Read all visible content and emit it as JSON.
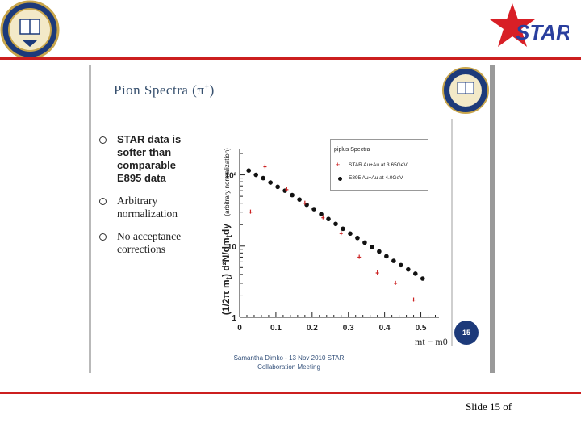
{
  "header": {
    "logo_text": "STAR",
    "colors": {
      "red": "#cc1f1f",
      "blue": "#2a3f9e",
      "gold": "#c8a54b"
    }
  },
  "slide": {
    "title_main": "Pion Spectra (",
    "title_symbol": "π",
    "title_sup": "+",
    "title_end": ")",
    "bullets": [
      "STAR data is softer than comparable E895 data",
      "Arbitrary normalization",
      "No acceptance corrections"
    ],
    "page_badge": "15",
    "caption_line1": "Samantha Dimko - 13 Nov 2010 STAR",
    "caption_line2": "Collaboration Meeting"
  },
  "chart_data": {
    "type": "scatter",
    "legend_title": "piplus Spectra",
    "ylabel": "(1/2π m",
    "ylabel_sub": "t",
    "ylabel_rest": ") d²N/dm",
    "ylabel_sub2": "t",
    "ylabel_rest2": "dy",
    "ylabel_note": "(arbitrary normalization)",
    "xlabel": "m",
    "xlabel_sub": "t",
    "xlabel_rest": " − m",
    "xlabel_sub2": "0",
    "x_ticks": [
      "0",
      "0.1",
      "0.2",
      "0.3",
      "0.4",
      "0.5"
    ],
    "y_ticks": [
      "1",
      "10",
      "10²"
    ],
    "xlim": [
      0,
      0.55
    ],
    "ylim": [
      1,
      200
    ],
    "log_y": true,
    "series": [
      {
        "name": "STAR Au+Au at 3.65GeV",
        "color": "#cc2222",
        "marker": "cross",
        "x": [
          0.07,
          0.13,
          0.18,
          0.23,
          0.28,
          0.33,
          0.38,
          0.43,
          0.48
        ],
        "y": [
          130,
          62,
          40,
          25,
          15,
          7.0,
          4.2,
          3.0,
          1.75
        ]
      },
      {
        "name": "E895 Au+Au at 4.0GeV",
        "color": "#111111",
        "marker": "dot",
        "x": [
          0.025,
          0.045,
          0.065,
          0.085,
          0.105,
          0.125,
          0.145,
          0.165,
          0.185,
          0.205,
          0.225,
          0.245,
          0.265,
          0.285,
          0.305,
          0.325,
          0.345,
          0.365,
          0.385,
          0.405,
          0.425,
          0.445,
          0.465,
          0.485,
          0.505
        ],
        "y": [
          115,
          100,
          90,
          78,
          68,
          60,
          52,
          45,
          38,
          33,
          28,
          24,
          20.5,
          17.5,
          15,
          13,
          11.2,
          9.7,
          8.4,
          7.2,
          6.2,
          5.4,
          4.7,
          4.1,
          3.5
        ]
      }
    ],
    "extra_star_points": {
      "x": [
        0.03
      ],
      "y": [
        30
      ]
    }
  },
  "footer": {
    "slide_number_label": "Slide 15 of"
  }
}
